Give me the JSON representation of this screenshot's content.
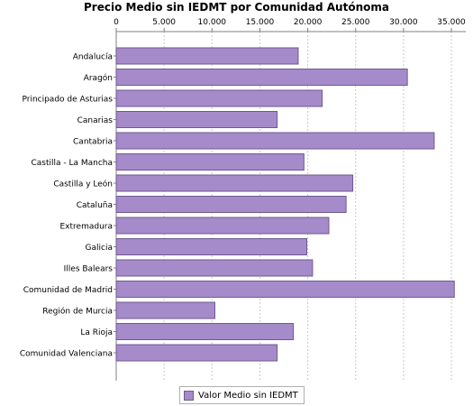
{
  "chart_data": {
    "type": "bar",
    "orientation": "horizontal",
    "title": "Precio Medio sin IEDMT por Comunidad Autónoma",
    "categories": [
      "Andalucía",
      "Aragón",
      "Principado de Asturias",
      "Canarias",
      "Cantabria",
      "Castilla - La Mancha",
      "Castilla y León",
      "Cataluña",
      "Extremadura",
      "Galicia",
      "Illes Balears",
      "Comunidad de Madrid",
      "Región de Murcia",
      "La Rioja",
      "Comunidad Valenciana"
    ],
    "series": [
      {
        "name": "Valor Medio sin IEDMT",
        "values": [
          19000,
          30400,
          21500,
          16800,
          33200,
          19600,
          24700,
          24000,
          22200,
          19900,
          20500,
          35300,
          10300,
          18500,
          16800
        ],
        "color": "#a68bcb"
      }
    ],
    "x_axis": {
      "position": "top",
      "ticks": [
        "0",
        "5.000",
        "10.000",
        "15.000",
        "20.000",
        "25.000",
        "30.000",
        "35.000"
      ],
      "tick_values": [
        0,
        5000,
        10000,
        15000,
        20000,
        25000,
        30000,
        35000
      ],
      "range": [
        0,
        36500
      ]
    },
    "grid": true,
    "legend": "bottom-center",
    "colors": {
      "bar": "#a68bcb",
      "bar_border": "#6e5a8e",
      "grid": "#c8c8c8"
    }
  }
}
